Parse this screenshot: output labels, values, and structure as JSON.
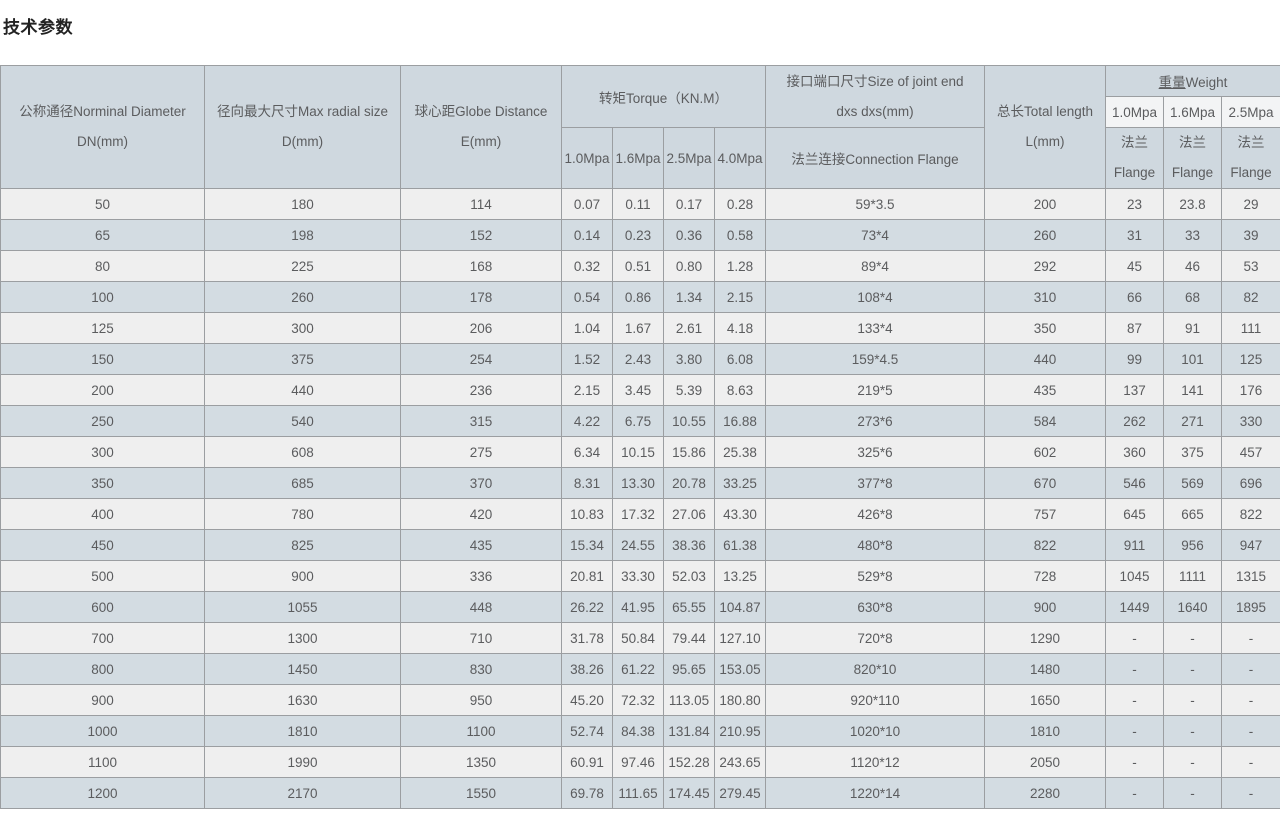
{
  "page": {
    "title": "技术参数"
  },
  "colors": {
    "header_bg": "#cfd8df",
    "header_mpa_white_bg": "#f3f4f5",
    "row_light": "#efefef",
    "row_blue": "#d3dce2",
    "grid_border": "#9b9ea1",
    "text": "#5b5c5e"
  },
  "table": {
    "headers": {
      "dn": {
        "line1": "公称通径Norminal Diameter",
        "line2": "DN(mm)"
      },
      "d": {
        "line1": "径向最大尺寸Max radial size",
        "line2": "D(mm)"
      },
      "e": {
        "line1": "球心距Globe Distance",
        "line2": "E(mm)"
      },
      "torque": {
        "label": "转矩Torque（KN.M）",
        "sub": [
          "1.0Mpa",
          "1.6Mpa",
          "2.5Mpa",
          "4.0Mpa"
        ]
      },
      "joint": {
        "line1": "接口端口尺寸Size of joint end",
        "line2": "dxs dxs(mm)",
        "sub": "法兰连接Connection Flange"
      },
      "length": {
        "line1": "总长Total length",
        "line2": "L(mm)"
      },
      "weight": {
        "cn": "重量",
        "en": "Weight",
        "sub": [
          "1.0Mpa",
          "1.6Mpa",
          "2.5Mpa"
        ],
        "flange_cn": "法兰",
        "flange_en": "Flange"
      }
    },
    "rows": [
      [
        "50",
        "180",
        "114",
        "0.07",
        "0.11",
        "0.17",
        "0.28",
        "59*3.5",
        "200",
        "23",
        "23.8",
        "29"
      ],
      [
        "65",
        "198",
        "152",
        "0.14",
        "0.23",
        "0.36",
        "0.58",
        "73*4",
        "260",
        "31",
        "33",
        "39"
      ],
      [
        "80",
        "225",
        "168",
        "0.32",
        "0.51",
        "0.80",
        "1.28",
        "89*4",
        "292",
        "45",
        "46",
        "53"
      ],
      [
        "100",
        "260",
        "178",
        "0.54",
        "0.86",
        "1.34",
        "2.15",
        "108*4",
        "310",
        "66",
        "68",
        "82"
      ],
      [
        "125",
        "300",
        "206",
        "1.04",
        "1.67",
        "2.61",
        "4.18",
        "133*4",
        "350",
        "87",
        "91",
        "111"
      ],
      [
        "150",
        "375",
        "254",
        "1.52",
        "2.43",
        "3.80",
        "6.08",
        "159*4.5",
        "440",
        "99",
        "101",
        "125"
      ],
      [
        "200",
        "440",
        "236",
        "2.15",
        "3.45",
        "5.39",
        "8.63",
        "219*5",
        "435",
        "137",
        "141",
        "176"
      ],
      [
        "250",
        "540",
        "315",
        "4.22",
        "6.75",
        "10.55",
        "16.88",
        "273*6",
        "584",
        "262",
        "271",
        "330"
      ],
      [
        "300",
        "608",
        "275",
        "6.34",
        "10.15",
        "15.86",
        "25.38",
        "325*6",
        "602",
        "360",
        "375",
        "457"
      ],
      [
        "350",
        "685",
        "370",
        "8.31",
        "13.30",
        "20.78",
        "33.25",
        "377*8",
        "670",
        "546",
        "569",
        "696"
      ],
      [
        "400",
        "780",
        "420",
        "10.83",
        "17.32",
        "27.06",
        "43.30",
        "426*8",
        "757",
        "645",
        "665",
        "822"
      ],
      [
        "450",
        "825",
        "435",
        "15.34",
        "24.55",
        "38.36",
        "61.38",
        "480*8",
        "822",
        "911",
        "956",
        "947"
      ],
      [
        "500",
        "900",
        "336",
        "20.81",
        "33.30",
        "52.03",
        "13.25",
        "529*8",
        "728",
        "1045",
        "1111",
        "1315"
      ],
      [
        "600",
        "1055",
        "448",
        "26.22",
        "41.95",
        "65.55",
        "104.87",
        "630*8",
        "900",
        "1449",
        "1640",
        "1895"
      ],
      [
        "700",
        "1300",
        "710",
        "31.78",
        "50.84",
        "79.44",
        "127.10",
        "720*8",
        "1290",
        "-",
        "-",
        "-"
      ],
      [
        "800",
        "1450",
        "830",
        "38.26",
        "61.22",
        "95.65",
        "153.05",
        "820*10",
        "1480",
        "-",
        "-",
        "-"
      ],
      [
        "900",
        "1630",
        "950",
        "45.20",
        "72.32",
        "113.05",
        "180.80",
        "920*110",
        "1650",
        "-",
        "-",
        "-"
      ],
      [
        "1000",
        "1810",
        "1100",
        "52.74",
        "84.38",
        "131.84",
        "210.95",
        "1020*10",
        "1810",
        "-",
        "-",
        "-"
      ],
      [
        "1100",
        "1990",
        "1350",
        "60.91",
        "97.46",
        "152.28",
        "243.65",
        "1120*12",
        "2050",
        "-",
        "-",
        "-"
      ],
      [
        "1200",
        "2170",
        "1550",
        "69.78",
        "111.65",
        "174.45",
        "279.45",
        "1220*14",
        "2280",
        "-",
        "-",
        "-"
      ]
    ]
  }
}
